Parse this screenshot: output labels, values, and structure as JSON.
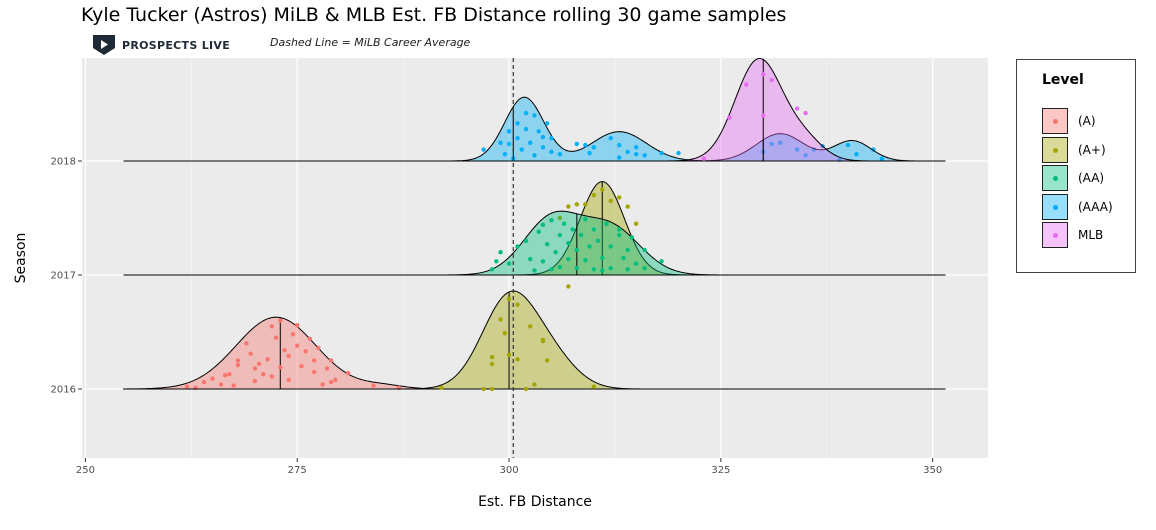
{
  "chart_data": {
    "type": "ridgeline",
    "title": "Kyle Tucker (Astros) MiLB & MLB Est. FB Distance rolling 30 game samples",
    "annotation": "Dashed Line = MiLB Career Average",
    "brand": "PROSPECTS LIVE",
    "xlabel": "Est. FB Distance",
    "ylabel": "Season",
    "xlim": [
      250,
      357
    ],
    "x_ticks": [
      250,
      275,
      300,
      325,
      350
    ],
    "y_categories": [
      "2016",
      "2017",
      "2018"
    ],
    "reference_line": {
      "x": 300.5,
      "style": "dashed"
    },
    "legend": {
      "title": "Level",
      "position": "right"
    },
    "series": [
      {
        "name": "(A)",
        "color": "#F8766D",
        "season": "2016",
        "median": 273,
        "density": [
          {
            "mu": 272.5,
            "sd": 4.7,
            "w": 1.0
          },
          {
            "mu": 285,
            "sd": 2.5,
            "w": 0.05
          }
        ],
        "height": 0.63,
        "points": [
          {
            "x": 262,
            "y": 0.02
          },
          {
            "x": 263,
            "y": 0.01
          },
          {
            "x": 264,
            "y": 0.06
          },
          {
            "x": 265,
            "y": 0.09
          },
          {
            "x": 266,
            "y": 0.04
          },
          {
            "x": 266.5,
            "y": 0.12
          },
          {
            "x": 267,
            "y": 0.13
          },
          {
            "x": 267.5,
            "y": 0.03
          },
          {
            "x": 268,
            "y": 0.25
          },
          {
            "x": 268,
            "y": 0.21
          },
          {
            "x": 269,
            "y": 0.4
          },
          {
            "x": 269.5,
            "y": 0.31
          },
          {
            "x": 270,
            "y": 0.07
          },
          {
            "x": 270,
            "y": 0.18
          },
          {
            "x": 270.5,
            "y": 0.22
          },
          {
            "x": 271,
            "y": 0.13
          },
          {
            "x": 271.5,
            "y": 0.26
          },
          {
            "x": 272,
            "y": 0.55
          },
          {
            "x": 272,
            "y": 0.11
          },
          {
            "x": 272.5,
            "y": 0.45
          },
          {
            "x": 273,
            "y": 0.19
          },
          {
            "x": 273,
            "y": 0.6
          },
          {
            "x": 273.5,
            "y": 0.34
          },
          {
            "x": 274,
            "y": 0.08
          },
          {
            "x": 274,
            "y": 0.29
          },
          {
            "x": 274.5,
            "y": 0.48
          },
          {
            "x": 275,
            "y": 0.56
          },
          {
            "x": 275,
            "y": 0.38
          },
          {
            "x": 275.5,
            "y": 0.2
          },
          {
            "x": 276,
            "y": 0.33
          },
          {
            "x": 276.5,
            "y": 0.44
          },
          {
            "x": 277,
            "y": 0.25
          },
          {
            "x": 277,
            "y": 0.15
          },
          {
            "x": 277.5,
            "y": 0.36
          },
          {
            "x": 278,
            "y": 0.04
          },
          {
            "x": 278.5,
            "y": 0.18
          },
          {
            "x": 279,
            "y": 0.25
          },
          {
            "x": 279.5,
            "y": 0.08
          },
          {
            "x": 279,
            "y": 0.06
          },
          {
            "x": 281,
            "y": 0.14
          },
          {
            "x": 284,
            "y": 0.03
          },
          {
            "x": 287,
            "y": 0.01
          }
        ]
      },
      {
        "name": "(A+)",
        "color": "#A3A500",
        "season": "2016",
        "median": 300,
        "density": [
          {
            "mu": 300,
            "sd": 3.2,
            "w": 1.0
          },
          {
            "mu": 305,
            "sd": 3,
            "w": 0.3
          }
        ],
        "height": 0.86,
        "points": [
          {
            "x": 292,
            "y": 0.01
          },
          {
            "x": 297,
            "y": 0.0
          },
          {
            "x": 298,
            "y": 0.0
          },
          {
            "x": 298,
            "y": 0.28
          },
          {
            "x": 298,
            "y": 0.22
          },
          {
            "x": 299,
            "y": 0.61
          },
          {
            "x": 299.5,
            "y": 0.49
          },
          {
            "x": 300,
            "y": 0.79
          },
          {
            "x": 300,
            "y": 0.3
          },
          {
            "x": 301,
            "y": 0.26
          },
          {
            "x": 301,
            "y": 0.74
          },
          {
            "x": 302,
            "y": 0.0
          },
          {
            "x": 302.5,
            "y": 0.55
          },
          {
            "x": 303,
            "y": 0.04
          },
          {
            "x": 304,
            "y": 0.43
          },
          {
            "x": 304,
            "y": 0.42
          },
          {
            "x": 304.5,
            "y": 0.25
          },
          {
            "x": 307,
            "y": 0.9
          },
          {
            "x": 310,
            "y": 0.02
          }
        ]
      },
      {
        "name": "(A+)",
        "color": "#A3A500",
        "season": "2017",
        "median": 311,
        "density": [
          {
            "mu": 311,
            "sd": 2.6,
            "w": 1.0
          }
        ],
        "height": 0.82,
        "points": [
          {
            "x": 306,
            "y": 0.5
          },
          {
            "x": 307,
            "y": 0.6
          },
          {
            "x": 308,
            "y": 0.62
          },
          {
            "x": 309,
            "y": 0.62
          },
          {
            "x": 310,
            "y": 0.7
          },
          {
            "x": 311,
            "y": 0.75
          },
          {
            "x": 312,
            "y": 0.65
          },
          {
            "x": 313,
            "y": 0.68
          },
          {
            "x": 314,
            "y": 0.6
          },
          {
            "x": 315,
            "y": 0.45
          }
        ]
      },
      {
        "name": "(AA)",
        "color": "#00BF7D",
        "season": "2017",
        "median": 308,
        "density": [
          {
            "mu": 305,
            "sd": 3.3,
            "w": 1.0
          },
          {
            "mu": 312,
            "sd": 3.5,
            "w": 0.85
          }
        ],
        "height": 0.56,
        "points": [
          {
            "x": 298,
            "y": 0.05
          },
          {
            "x": 298.5,
            "y": 0.12
          },
          {
            "x": 299,
            "y": 0.2
          },
          {
            "x": 300,
            "y": 0.1
          },
          {
            "x": 301,
            "y": 0.25
          },
          {
            "x": 302,
            "y": 0.3
          },
          {
            "x": 302.5,
            "y": 0.14
          },
          {
            "x": 303,
            "y": 0.04
          },
          {
            "x": 303.5,
            "y": 0.38
          },
          {
            "x": 304,
            "y": 0.12
          },
          {
            "x": 304,
            "y": 0.44
          },
          {
            "x": 304.5,
            "y": 0.27
          },
          {
            "x": 305,
            "y": 0.05
          },
          {
            "x": 305,
            "y": 0.48
          },
          {
            "x": 305.5,
            "y": 0.2
          },
          {
            "x": 306,
            "y": 0.35
          },
          {
            "x": 306,
            "y": 0.07
          },
          {
            "x": 306.5,
            "y": 0.45
          },
          {
            "x": 307,
            "y": 0.14
          },
          {
            "x": 307,
            "y": 0.28
          },
          {
            "x": 307.5,
            "y": 0.4
          },
          {
            "x": 308,
            "y": 0.06
          },
          {
            "x": 308,
            "y": 0.22
          },
          {
            "x": 308.5,
            "y": 0.35
          },
          {
            "x": 309,
            "y": 0.49
          },
          {
            "x": 309,
            "y": 0.13
          },
          {
            "x": 309.5,
            "y": 0.25
          },
          {
            "x": 310,
            "y": 0.05
          },
          {
            "x": 310,
            "y": 0.4
          },
          {
            "x": 310.5,
            "y": 0.3
          },
          {
            "x": 311,
            "y": 0.15
          },
          {
            "x": 311,
            "y": 0.04
          },
          {
            "x": 311.5,
            "y": 0.45
          },
          {
            "x": 312,
            "y": 0.25
          },
          {
            "x": 312,
            "y": 0.06
          },
          {
            "x": 313,
            "y": 0.4
          },
          {
            "x": 313,
            "y": 0.35
          },
          {
            "x": 313.5,
            "y": 0.15
          },
          {
            "x": 314,
            "y": 0.05
          },
          {
            "x": 314,
            "y": 0.22
          },
          {
            "x": 314.5,
            "y": 0.33
          },
          {
            "x": 315,
            "y": 0.1
          },
          {
            "x": 316,
            "y": 0.22
          },
          {
            "x": 316,
            "y": 0.06
          },
          {
            "x": 318,
            "y": 0.12
          }
        ]
      },
      {
        "name": "(AAA)",
        "color": "#00B0F6",
        "season": "2018",
        "median": 300.5,
        "density": [
          {
            "mu": 301.8,
            "sd": 2.3,
            "w": 1.0
          },
          {
            "mu": 313,
            "sd": 3.2,
            "w": 0.46
          }
        ],
        "height": 0.56,
        "points": [
          {
            "x": 297,
            "y": 0.1
          },
          {
            "x": 299,
            "y": 0.16
          },
          {
            "x": 299.5,
            "y": 0.06
          },
          {
            "x": 300,
            "y": 0.26
          },
          {
            "x": 300,
            "y": 0.15
          },
          {
            "x": 300.5,
            "y": 0.02
          },
          {
            "x": 301,
            "y": 0.33
          },
          {
            "x": 301,
            "y": 0.2
          },
          {
            "x": 301.5,
            "y": 0.1
          },
          {
            "x": 302,
            "y": 0.28
          },
          {
            "x": 302,
            "y": 0.42
          },
          {
            "x": 302.5,
            "y": 0.16
          },
          {
            "x": 303,
            "y": 0.05
          },
          {
            "x": 303,
            "y": 0.4
          },
          {
            "x": 303.5,
            "y": 0.26
          },
          {
            "x": 304,
            "y": 0.21
          },
          {
            "x": 304,
            "y": 0.12
          },
          {
            "x": 304.5,
            "y": 0.33
          },
          {
            "x": 305,
            "y": 0.08
          },
          {
            "x": 305,
            "y": 0.2
          },
          {
            "x": 306,
            "y": 0.06
          },
          {
            "x": 308,
            "y": 0.15
          },
          {
            "x": 309,
            "y": 0.14
          },
          {
            "x": 309.5,
            "y": 0.07
          },
          {
            "x": 310,
            "y": 0.12
          },
          {
            "x": 312,
            "y": 0.2
          },
          {
            "x": 313,
            "y": 0.14
          },
          {
            "x": 313,
            "y": 0.03
          },
          {
            "x": 314,
            "y": 0.08
          },
          {
            "x": 315,
            "y": 0.12
          },
          {
            "x": 315,
            "y": 0.06
          },
          {
            "x": 316,
            "y": 0.05
          },
          {
            "x": 318,
            "y": 0.07
          },
          {
            "x": 320,
            "y": 0.07
          },
          {
            "x": 330,
            "y": 0.08
          },
          {
            "x": 331,
            "y": 0.15
          },
          {
            "x": 332,
            "y": 0.16
          },
          {
            "x": 334,
            "y": 0.1
          },
          {
            "x": 335,
            "y": 0.05
          },
          {
            "x": 336,
            "y": 0.1
          },
          {
            "x": 337,
            "y": 0.13
          },
          {
            "x": 339,
            "y": 0.01
          },
          {
            "x": 340,
            "y": 0.14
          },
          {
            "x": 341,
            "y": 0.06
          },
          {
            "x": 343,
            "y": 0.1
          },
          {
            "x": 344,
            "y": 0.02
          }
        ]
      },
      {
        "name": "(AAA)",
        "color": "#00B0F6",
        "season": "2018",
        "median": 330,
        "density": [
          {
            "mu": 332,
            "sd": 2.8,
            "w": 1.0
          },
          {
            "mu": 340.5,
            "sd": 2.2,
            "w": 0.74
          }
        ],
        "height": 0.24,
        "points": []
      },
      {
        "name": "MLB",
        "color": "#E76BF3",
        "season": "2018",
        "median": 330,
        "density": [
          {
            "mu": 329.5,
            "sd": 2.8,
            "w": 1.0
          },
          {
            "mu": 335,
            "sd": 2.2,
            "w": 0.18
          }
        ],
        "height": 0.9,
        "points": [
          {
            "x": 323,
            "y": 0.02
          },
          {
            "x": 326,
            "y": 0.38
          },
          {
            "x": 328,
            "y": 0.67
          },
          {
            "x": 330,
            "y": 0.4
          },
          {
            "x": 330,
            "y": 0.76
          },
          {
            "x": 331,
            "y": 0.71
          },
          {
            "x": 334,
            "y": 0.46
          },
          {
            "x": 335,
            "y": 0.42
          }
        ]
      }
    ]
  },
  "legend_items": [
    {
      "label": "(A)",
      "color": "#F8766D"
    },
    {
      "label": "(A+)",
      "color": "#A3A500"
    },
    {
      "label": "(AA)",
      "color": "#00BF7D"
    },
    {
      "label": "(AAA)",
      "color": "#00B0F6"
    },
    {
      "label": "MLB",
      "color": "#E76BF3"
    }
  ]
}
